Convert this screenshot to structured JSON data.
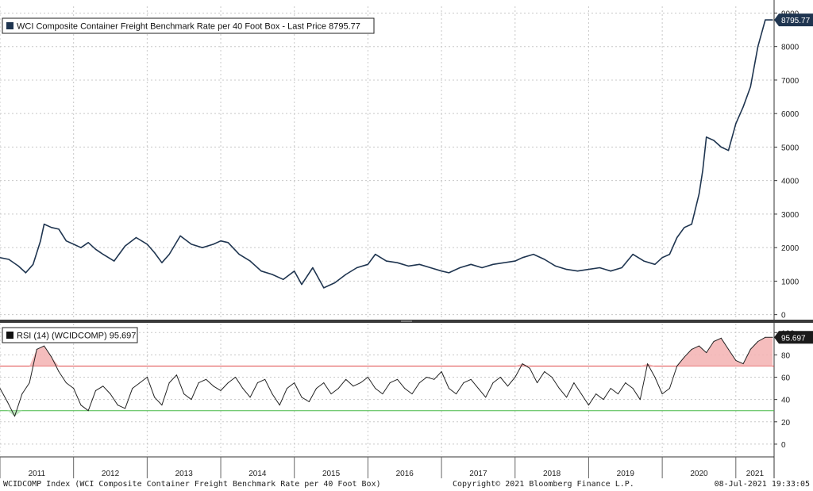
{
  "footer": {
    "left": "WCIDCOMP Index (WCI Composite Container Freight Benchmark Rate per 40 Foot Box)",
    "center": "Copyright© 2021 Bloomberg Finance L.P.",
    "right": "08-Jul-2021 19:33:05"
  },
  "colors": {
    "price_line": "#1f3550",
    "rsi_line": "#222222",
    "overbought_line": "#e04848",
    "oversold_line": "#46b846",
    "overbought_fill": "#f4b6b6",
    "oversold_fill": "#b8e6b8",
    "grid": "#c8c8c8",
    "price_badge": "#1f3550",
    "rsi_badge": "#1a1a1a"
  },
  "chart_data": [
    {
      "type": "line",
      "legend": "WCI Composite Container Freight Benchmark Rate per 40 Foot Box - Last Price 8795.77",
      "last_value_label": "8795.77",
      "y_ticks": [
        "0",
        "1000",
        "2000",
        "3000",
        "4000",
        "5000",
        "6000",
        "7000",
        "8000",
        "9000"
      ],
      "ylim": [
        -150,
        9200
      ],
      "grid": true,
      "x": [
        2011.0,
        2011.12,
        2011.25,
        2011.35,
        2011.45,
        2011.55,
        2011.6,
        2011.7,
        2011.8,
        2011.9,
        2012.0,
        2012.1,
        2012.2,
        2012.3,
        2012.4,
        2012.55,
        2012.7,
        2012.85,
        2013.0,
        2013.1,
        2013.2,
        2013.3,
        2013.45,
        2013.6,
        2013.75,
        2013.9,
        2014.0,
        2014.1,
        2014.25,
        2014.4,
        2014.55,
        2014.7,
        2014.85,
        2015.0,
        2015.1,
        2015.25,
        2015.4,
        2015.55,
        2015.7,
        2015.85,
        2016.0,
        2016.1,
        2016.25,
        2016.4,
        2016.55,
        2016.7,
        2016.85,
        2017.0,
        2017.1,
        2017.25,
        2017.4,
        2017.55,
        2017.7,
        2017.85,
        2018.0,
        2018.1,
        2018.25,
        2018.4,
        2018.55,
        2018.7,
        2018.85,
        2019.0,
        2019.15,
        2019.3,
        2019.45,
        2019.6,
        2019.75,
        2019.9,
        2020.0,
        2020.1,
        2020.2,
        2020.3,
        2020.4,
        2020.5,
        2020.55,
        2020.6,
        2020.7,
        2020.8,
        2020.9,
        2021.0,
        2021.1,
        2021.2,
        2021.3,
        2021.4,
        2021.5
      ],
      "values": [
        1700,
        1650,
        1450,
        1250,
        1500,
        2200,
        2700,
        2600,
        2550,
        2200,
        2100,
        2000,
        2150,
        1950,
        1800,
        1600,
        2050,
        2300,
        2100,
        1850,
        1550,
        1800,
        2350,
        2100,
        2000,
        2100,
        2200,
        2150,
        1800,
        1600,
        1300,
        1200,
        1050,
        1300,
        900,
        1400,
        800,
        950,
        1200,
        1400,
        1500,
        1800,
        1600,
        1550,
        1450,
        1500,
        1400,
        1300,
        1250,
        1400,
        1500,
        1400,
        1500,
        1550,
        1600,
        1700,
        1800,
        1650,
        1450,
        1350,
        1300,
        1350,
        1400,
        1300,
        1400,
        1800,
        1600,
        1500,
        1700,
        1800,
        2300,
        2600,
        2700,
        3600,
        4300,
        5300,
        5200,
        5000,
        4900,
        5700,
        6200,
        6800,
        8000,
        8795.77,
        8795.77
      ]
    },
    {
      "type": "line",
      "legend": "RSI (14) (WCIDCOMP) 95.697",
      "last_value_label": "95.697",
      "y_ticks": [
        "0",
        "20",
        "40",
        "60",
        "80",
        "100"
      ],
      "ylim": [
        -10,
        108
      ],
      "overbought": 70,
      "oversold": 30,
      "grid": true,
      "x": [
        2011.0,
        2011.1,
        2011.2,
        2011.3,
        2011.4,
        2011.5,
        2011.6,
        2011.7,
        2011.8,
        2011.9,
        2012.0,
        2012.1,
        2012.2,
        2012.3,
        2012.4,
        2012.5,
        2012.6,
        2012.7,
        2012.8,
        2012.9,
        2013.0,
        2013.1,
        2013.2,
        2013.3,
        2013.4,
        2013.5,
        2013.6,
        2013.7,
        2013.8,
        2013.9,
        2014.0,
        2014.1,
        2014.2,
        2014.3,
        2014.4,
        2014.5,
        2014.6,
        2014.7,
        2014.8,
        2014.9,
        2015.0,
        2015.1,
        2015.2,
        2015.3,
        2015.4,
        2015.5,
        2015.6,
        2015.7,
        2015.8,
        2015.9,
        2016.0,
        2016.1,
        2016.2,
        2016.3,
        2016.4,
        2016.5,
        2016.6,
        2016.7,
        2016.8,
        2016.9,
        2017.0,
        2017.1,
        2017.2,
        2017.3,
        2017.4,
        2017.5,
        2017.6,
        2017.7,
        2017.8,
        2017.9,
        2018.0,
        2018.1,
        2018.2,
        2018.3,
        2018.4,
        2018.5,
        2018.6,
        2018.7,
        2018.8,
        2018.9,
        2019.0,
        2019.1,
        2019.2,
        2019.3,
        2019.4,
        2019.5,
        2019.6,
        2019.7,
        2019.8,
        2019.9,
        2020.0,
        2020.1,
        2020.2,
        2020.3,
        2020.4,
        2020.5,
        2020.6,
        2020.7,
        2020.8,
        2020.9,
        2021.0,
        2021.1,
        2021.2,
        2021.3,
        2021.4,
        2021.5
      ],
      "values": [
        50,
        38,
        25,
        45,
        55,
        85,
        88,
        78,
        65,
        55,
        50,
        35,
        30,
        48,
        52,
        45,
        35,
        32,
        50,
        55,
        60,
        42,
        35,
        55,
        62,
        45,
        40,
        55,
        58,
        52,
        48,
        55,
        60,
        50,
        42,
        55,
        58,
        45,
        35,
        50,
        55,
        42,
        38,
        50,
        55,
        45,
        50,
        58,
        52,
        55,
        60,
        50,
        45,
        55,
        58,
        50,
        45,
        55,
        60,
        58,
        65,
        50,
        45,
        55,
        58,
        50,
        42,
        55,
        60,
        52,
        60,
        72,
        68,
        55,
        65,
        60,
        50,
        42,
        55,
        45,
        35,
        45,
        40,
        50,
        45,
        55,
        50,
        40,
        72,
        60,
        45,
        50,
        70,
        78,
        85,
        88,
        82,
        92,
        95,
        85,
        75,
        72,
        85,
        92,
        95.697,
        95.697
      ]
    }
  ],
  "x_axis": {
    "years": [
      "2011",
      "2012",
      "2013",
      "2014",
      "2015",
      "2016",
      "2017",
      "2018",
      "2019",
      "2020",
      "2021"
    ],
    "year_starts": [
      2011,
      2012,
      2013,
      2014,
      2015,
      2016,
      2017,
      2018,
      2019,
      2020,
      2021
    ],
    "xlim": [
      2011.0,
      2021.52
    ]
  }
}
